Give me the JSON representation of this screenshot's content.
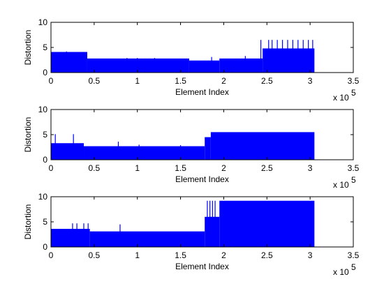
{
  "chart_data": [
    {
      "type": "area",
      "title": "",
      "xlabel": "Element Index",
      "ylabel": "Distortion",
      "x_multiplier_label": "x 10",
      "x_multiplier_exponent": "5",
      "xlim": [
        0,
        3.5
      ],
      "ylim": [
        0,
        10
      ],
      "xticks": [
        "0",
        "0.5",
        "1",
        "1.5",
        "2",
        "2.5",
        "3",
        "3.5"
      ],
      "yticks": [
        "0",
        "5",
        "10"
      ],
      "grid": false,
      "legend": "none",
      "series_color": "#0000ff",
      "segments": [
        {
          "x0": 0,
          "x1": 0.42,
          "y": 4.1
        },
        {
          "x0": 0.42,
          "x1": 1.6,
          "y": 2.8
        },
        {
          "x0": 1.6,
          "x1": 1.95,
          "y": 2.4
        },
        {
          "x0": 1.95,
          "x1": 2.45,
          "y": 2.8
        },
        {
          "x0": 2.45,
          "x1": 3.05,
          "y": 4.8
        }
      ],
      "spikes": [
        {
          "x": 0.18,
          "y": 4.2
        },
        {
          "x": 0.33,
          "y": 3.9
        },
        {
          "x": 0.88,
          "y": 2.9
        },
        {
          "x": 1.0,
          "y": 2.9
        },
        {
          "x": 1.2,
          "y": 2.9
        },
        {
          "x": 1.86,
          "y": 3.1
        },
        {
          "x": 2.25,
          "y": 3.3
        },
        {
          "x": 2.43,
          "y": 6.5
        },
        {
          "x": 2.52,
          "y": 6.5
        },
        {
          "x": 2.56,
          "y": 6.5
        },
        {
          "x": 2.62,
          "y": 6.5
        },
        {
          "x": 2.68,
          "y": 6.5
        },
        {
          "x": 2.74,
          "y": 6.5
        },
        {
          "x": 2.8,
          "y": 6.5
        },
        {
          "x": 2.86,
          "y": 6.5
        },
        {
          "x": 2.92,
          "y": 6.5
        },
        {
          "x": 2.98,
          "y": 6.5
        },
        {
          "x": 3.03,
          "y": 6.5
        }
      ]
    },
    {
      "type": "area",
      "title": "",
      "xlabel": "Element Index",
      "ylabel": "Distortion",
      "x_multiplier_label": "x 10",
      "x_multiplier_exponent": "5",
      "xlim": [
        0,
        3.5
      ],
      "ylim": [
        0,
        10
      ],
      "xticks": [
        "0",
        "0.5",
        "1",
        "1.5",
        "2",
        "2.5",
        "3",
        "3.5"
      ],
      "yticks": [
        "0",
        "5",
        "10"
      ],
      "grid": false,
      "legend": "none",
      "series_color": "#0000ff",
      "segments": [
        {
          "x0": 0,
          "x1": 0.38,
          "y": 3.3
        },
        {
          "x0": 0.38,
          "x1": 1.78,
          "y": 2.7
        },
        {
          "x0": 1.78,
          "x1": 1.85,
          "y": 4.5
        },
        {
          "x0": 1.85,
          "x1": 3.05,
          "y": 5.5
        }
      ],
      "spikes": [
        {
          "x": 0.05,
          "y": 5.1
        },
        {
          "x": 0.26,
          "y": 5.1
        },
        {
          "x": 0.78,
          "y": 3.6
        },
        {
          "x": 1.02,
          "y": 3.0
        },
        {
          "x": 1.5,
          "y": 2.9
        }
      ]
    },
    {
      "type": "area",
      "title": "",
      "xlabel": "Element Index",
      "ylabel": "Distortion",
      "x_multiplier_label": "x 10",
      "x_multiplier_exponent": "5",
      "xlim": [
        0,
        3.5
      ],
      "ylim": [
        0,
        10
      ],
      "xticks": [
        "0",
        "0.5",
        "1",
        "1.5",
        "2",
        "2.5",
        "3",
        "3.5"
      ],
      "yticks": [
        "0",
        "5",
        "10"
      ],
      "grid": false,
      "legend": "none",
      "series_color": "#0000ff",
      "segments": [
        {
          "x0": 0,
          "x1": 0.45,
          "y": 3.6
        },
        {
          "x0": 0.45,
          "x1": 1.78,
          "y": 3.1
        },
        {
          "x0": 1.78,
          "x1": 1.95,
          "y": 6.0
        },
        {
          "x0": 1.95,
          "x1": 3.05,
          "y": 9.2
        }
      ],
      "spikes": [
        {
          "x": 0.25,
          "y": 4.7
        },
        {
          "x": 0.3,
          "y": 4.7
        },
        {
          "x": 0.38,
          "y": 4.7
        },
        {
          "x": 0.43,
          "y": 4.7
        },
        {
          "x": 0.8,
          "y": 4.5
        },
        {
          "x": 1.81,
          "y": 9.2
        },
        {
          "x": 1.84,
          "y": 9.2
        },
        {
          "x": 1.87,
          "y": 9.2
        },
        {
          "x": 1.9,
          "y": 9.2
        }
      ]
    }
  ]
}
